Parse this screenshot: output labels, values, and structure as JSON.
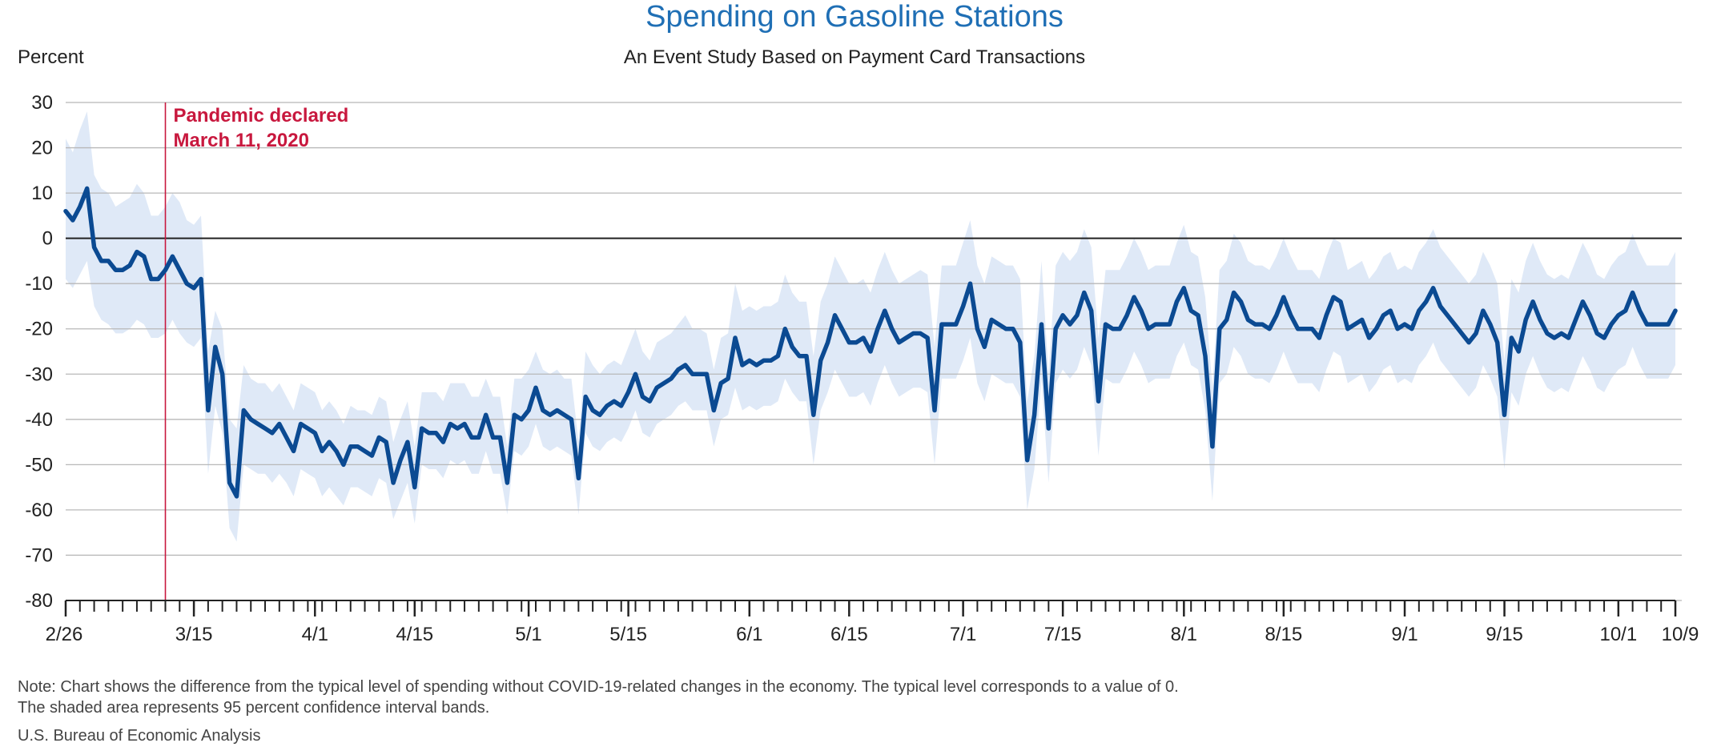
{
  "colors": {
    "title": "#1f6fb5",
    "line": "#0b4a92",
    "band": "#dfe9f7",
    "event": "#c8183e",
    "grid": "#b8b8b8",
    "zero": "#222222"
  },
  "chart_data": {
    "type": "line",
    "title": "Spending on Gasoline Stations",
    "subtitle": "An Event Study Based on Payment Card Transactions",
    "ylabel": "Percent",
    "ylim": [
      -80,
      30
    ],
    "yticks": [
      30,
      20,
      10,
      0,
      -10,
      -20,
      -30,
      -40,
      -50,
      -60,
      -70,
      -80
    ],
    "grid": true,
    "x_start": "2020-02-26",
    "x_end": "2020-10-09",
    "xtick_labels": [
      {
        "label": "2/26",
        "date": "2020-02-26"
      },
      {
        "label": "3/15",
        "date": "2020-03-15"
      },
      {
        "label": "4/1",
        "date": "2020-04-01"
      },
      {
        "label": "4/15",
        "date": "2020-04-15"
      },
      {
        "label": "5/1",
        "date": "2020-05-01"
      },
      {
        "label": "5/15",
        "date": "2020-05-15"
      },
      {
        "label": "6/1",
        "date": "2020-06-01"
      },
      {
        "label": "6/15",
        "date": "2020-06-15"
      },
      {
        "label": "7/1",
        "date": "2020-07-01"
      },
      {
        "label": "7/15",
        "date": "2020-07-15"
      },
      {
        "label": "8/1",
        "date": "2020-08-01"
      },
      {
        "label": "8/15",
        "date": "2020-08-15"
      },
      {
        "label": "9/1",
        "date": "2020-09-01"
      },
      {
        "label": "9/15",
        "date": "2020-09-15"
      },
      {
        "label": "10/1",
        "date": "2020-10-01"
      },
      {
        "label": "10/9",
        "date": "2020-10-09"
      }
    ],
    "annotation": {
      "date": "2020-03-11",
      "lines": [
        "Pandemic declared",
        "March 11, 2020"
      ]
    },
    "values": [
      6,
      4,
      7,
      11,
      -2,
      -5,
      -5,
      -7,
      -7,
      -6,
      -3,
      -4,
      -9,
      -9,
      -7,
      -4,
      -7,
      -10,
      -11,
      -9,
      -38,
      -24,
      -30,
      -54,
      -57,
      -38,
      -40,
      -41,
      -42,
      -43,
      -41,
      -44,
      -47,
      -41,
      -42,
      -43,
      -47,
      -45,
      -47,
      -50,
      -46,
      -46,
      -47,
      -48,
      -44,
      -45,
      -54,
      -49,
      -45,
      -55,
      -42,
      -43,
      -43,
      -45,
      -41,
      -42,
      -41,
      -44,
      -44,
      -39,
      -44,
      -44,
      -54,
      -39,
      -40,
      -38,
      -33,
      -38,
      -39,
      -38,
      -39,
      -40,
      -53,
      -35,
      -38,
      -39,
      -37,
      -36,
      -37,
      -34,
      -30,
      -35,
      -36,
      -33,
      -32,
      -31,
      -29,
      -28,
      -30,
      -30,
      -30,
      -38,
      -32,
      -31,
      -22,
      -28,
      -27,
      -28,
      -27,
      -27,
      -26,
      -20,
      -24,
      -26,
      -26,
      -39,
      -27,
      -23,
      -17,
      -20,
      -23,
      -23,
      -22,
      -25,
      -20,
      -16,
      -20,
      -23,
      -22,
      -21,
      -21,
      -22,
      -38,
      -19,
      -19,
      -19,
      -15,
      -10,
      -20,
      -24,
      -18,
      -19,
      -20,
      -20,
      -23,
      -49,
      -39,
      -19,
      -42,
      -20,
      -17,
      -19,
      -17,
      -12,
      -16,
      -36,
      -19,
      -20,
      -20,
      -17,
      -13,
      -16,
      -20,
      -19,
      -19,
      -19,
      -14,
      -11,
      -16,
      -17,
      -26,
      -46,
      -20,
      -18,
      -12,
      -14,
      -18,
      -19,
      -19,
      -20,
      -17,
      -13,
      -17,
      -20,
      -20,
      -20,
      -22,
      -17,
      -13,
      -14,
      -20,
      -19,
      -18,
      -22,
      -20,
      -17,
      -16,
      -20,
      -19,
      -20,
      -16,
      -14,
      -11,
      -15,
      -17,
      -19,
      -21,
      -23,
      -21,
      -16,
      -19,
      -23,
      -39,
      -22,
      -25,
      -18,
      -14,
      -18,
      -21,
      -22,
      -21,
      -22,
      -18,
      -14,
      -17,
      -21,
      -22,
      -19,
      -17,
      -16,
      -12,
      -16,
      -19,
      -19,
      -19,
      -19,
      -16
    ],
    "band_upper": [
      22,
      19,
      24,
      28,
      14,
      11,
      10,
      7,
      8,
      9,
      12,
      10,
      5,
      5,
      7,
      10,
      8,
      4,
      3,
      5,
      -25,
      -16,
      -20,
      -40,
      -42,
      -28,
      -31,
      -32,
      -32,
      -34,
      -32,
      -35,
      -38,
      -32,
      -33,
      -34,
      -38,
      -36,
      -38,
      -41,
      -37,
      -38,
      -38,
      -39,
      -35,
      -36,
      -45,
      -40,
      -36,
      -46,
      -34,
      -34,
      -34,
      -36,
      -32,
      -32,
      -32,
      -35,
      -35,
      -31,
      -35,
      -35,
      -46,
      -31,
      -31,
      -29,
      -25,
      -29,
      -30,
      -29,
      -31,
      -31,
      -45,
      -25,
      -28,
      -30,
      -28,
      -27,
      -28,
      -24,
      -20,
      -25,
      -27,
      -23,
      -22,
      -21,
      -19,
      -17,
      -20,
      -20,
      -21,
      -29,
      -22,
      -21,
      -10,
      -16,
      -15,
      -16,
      -15,
      -15,
      -14,
      -8,
      -12,
      -14,
      -14,
      -26,
      -14,
      -10,
      -4,
      -7,
      -10,
      -10,
      -9,
      -12,
      -7,
      -3,
      -7,
      -10,
      -9,
      -8,
      -7,
      -8,
      -24,
      -6,
      -6,
      -6,
      -1,
      4,
      -6,
      -10,
      -4,
      -5,
      -6,
      -6,
      -9,
      -36,
      -26,
      -5,
      -30,
      -6,
      -3,
      -5,
      -3,
      2,
      -2,
      -22,
      -7,
      -7,
      -7,
      -4,
      0,
      -3,
      -7,
      -6,
      -6,
      -6,
      -1,
      3,
      -3,
      -4,
      -13,
      -33,
      -7,
      -5,
      1,
      -1,
      -5,
      -6,
      -6,
      -7,
      -4,
      0,
      -4,
      -7,
      -7,
      -7,
      -9,
      -4,
      0,
      -1,
      -7,
      -6,
      -5,
      -9,
      -7,
      -4,
      -3,
      -7,
      -6,
      -7,
      -3,
      -1,
      2,
      -2,
      -4,
      -6,
      -8,
      -10,
      -8,
      -3,
      -6,
      -10,
      -27,
      -9,
      -12,
      -5,
      -1,
      -5,
      -8,
      -9,
      -8,
      -9,
      -5,
      -1,
      -4,
      -8,
      -9,
      -6,
      -4,
      -3,
      1,
      -3,
      -6,
      -6,
      -6,
      -6,
      -3
    ],
    "band_lower": [
      -9,
      -11,
      -8,
      -5,
      -15,
      -18,
      -19,
      -21,
      -21,
      -20,
      -18,
      -19,
      -22,
      -22,
      -21,
      -18,
      -21,
      -23,
      -24,
      -22,
      -52,
      -37,
      -43,
      -64,
      -67,
      -50,
      -51,
      -52,
      -52,
      -54,
      -52,
      -54,
      -57,
      -51,
      -52,
      -53,
      -57,
      -55,
      -57,
      -59,
      -55,
      -55,
      -56,
      -57,
      -53,
      -54,
      -62,
      -58,
      -54,
      -63,
      -50,
      -51,
      -51,
      -53,
      -49,
      -50,
      -49,
      -52,
      -52,
      -47,
      -52,
      -52,
      -61,
      -47,
      -48,
      -46,
      -41,
      -46,
      -47,
      -46,
      -47,
      -48,
      -61,
      -43,
      -46,
      -47,
      -45,
      -44,
      -45,
      -42,
      -38,
      -43,
      -44,
      -41,
      -40,
      -39,
      -37,
      -36,
      -38,
      -38,
      -38,
      -46,
      -40,
      -39,
      -33,
      -38,
      -37,
      -38,
      -37,
      -37,
      -36,
      -31,
      -34,
      -36,
      -36,
      -50,
      -38,
      -34,
      -29,
      -32,
      -35,
      -35,
      -34,
      -37,
      -32,
      -28,
      -32,
      -35,
      -34,
      -33,
      -33,
      -34,
      -50,
      -31,
      -31,
      -31,
      -27,
      -22,
      -32,
      -36,
      -30,
      -31,
      -32,
      -32,
      -35,
      -60,
      -51,
      -31,
      -54,
      -32,
      -29,
      -31,
      -29,
      -24,
      -28,
      -48,
      -31,
      -32,
      -32,
      -29,
      -25,
      -28,
      -32,
      -31,
      -31,
      -31,
      -26,
      -23,
      -28,
      -29,
      -38,
      -58,
      -32,
      -30,
      -24,
      -26,
      -30,
      -31,
      -31,
      -32,
      -29,
      -25,
      -29,
      -32,
      -32,
      -32,
      -34,
      -29,
      -25,
      -26,
      -32,
      -31,
      -30,
      -34,
      -32,
      -29,
      -28,
      -32,
      -31,
      -32,
      -28,
      -26,
      -23,
      -27,
      -29,
      -31,
      -33,
      -35,
      -33,
      -28,
      -31,
      -35,
      -51,
      -34,
      -37,
      -30,
      -26,
      -30,
      -33,
      -34,
      -33,
      -34,
      -30,
      -26,
      -29,
      -33,
      -34,
      -31,
      -29,
      -28,
      -24,
      -28,
      -31,
      -31,
      -31,
      -31,
      -28
    ]
  },
  "note": {
    "line1": "Note: Chart shows the difference from the typical level of spending without COVID-19-related changes in the economy. The typical level corresponds to a value of 0.",
    "line2": "The shaded area represents 95 percent confidence interval bands."
  },
  "source": "U.S. Bureau of Economic Analysis"
}
